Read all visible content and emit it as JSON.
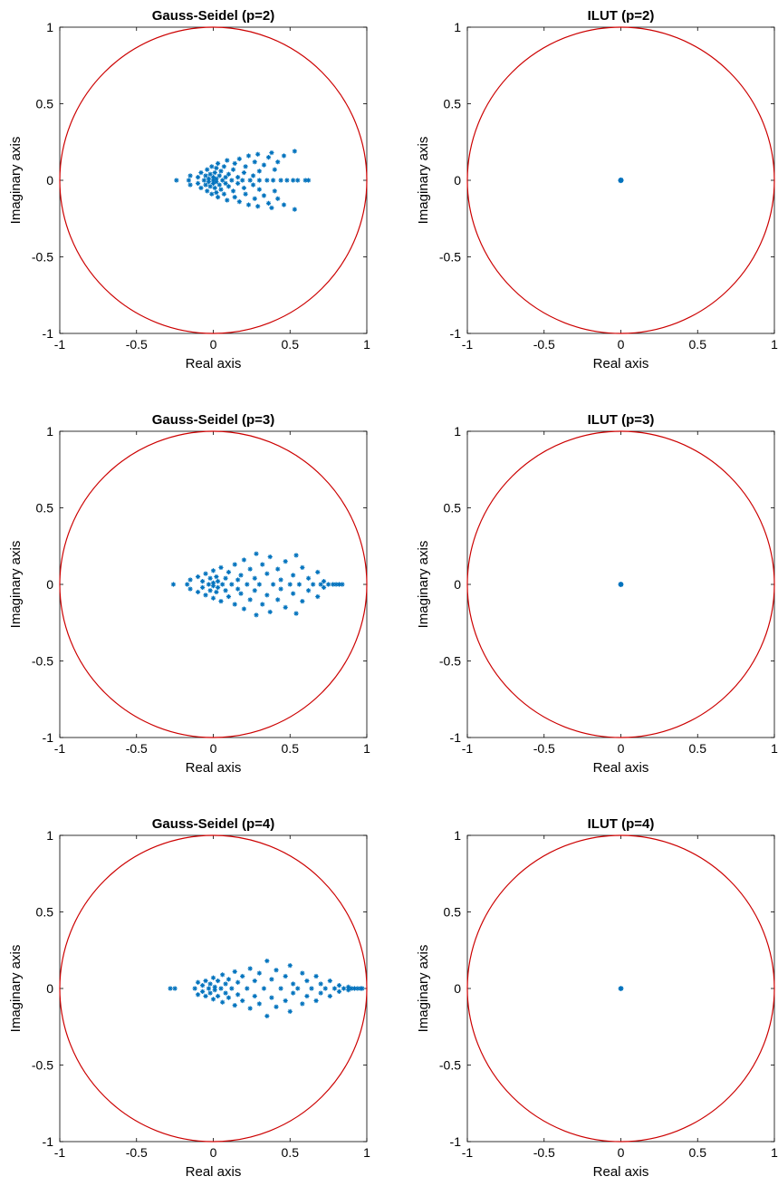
{
  "colors": {
    "unit_circle": "#cc0000",
    "eigenvalues": "#0072bd",
    "axes": "#000000"
  },
  "chart_data": [
    {
      "type": "scatter",
      "title": "Gauss-Seidel (p=2)",
      "xlabel": "Real axis",
      "ylabel": "Imaginary axis",
      "xlim": [
        -1,
        1
      ],
      "ylim": [
        -1,
        1
      ],
      "xticks": [
        "-1",
        "-0.5",
        "0",
        "0.5",
        "1"
      ],
      "yticks": [
        "-1",
        "-0.5",
        "0",
        "0.5",
        "1"
      ],
      "grid": false,
      "reference": "unit circle",
      "marker": "*",
      "points": [
        [
          -0.24,
          0
        ],
        [
          -0.16,
          0
        ],
        [
          -0.15,
          0.03
        ],
        [
          -0.15,
          -0.03
        ],
        [
          -0.1,
          0.02
        ],
        [
          -0.1,
          -0.02
        ],
        [
          -0.08,
          0.05
        ],
        [
          -0.08,
          -0.05
        ],
        [
          -0.06,
          0
        ],
        [
          -0.05,
          0.03
        ],
        [
          -0.05,
          -0.03
        ],
        [
          -0.04,
          0.07
        ],
        [
          -0.04,
          -0.07
        ],
        [
          -0.03,
          0.01
        ],
        [
          -0.03,
          -0.01
        ],
        [
          -0.02,
          0.04
        ],
        [
          -0.02,
          -0.04
        ],
        [
          -0.01,
          0.09
        ],
        [
          -0.01,
          -0.09
        ],
        [
          0,
          0
        ],
        [
          0,
          0.02
        ],
        [
          0,
          -0.02
        ],
        [
          0.01,
          0.05
        ],
        [
          0.01,
          -0.05
        ],
        [
          0.02,
          0.01
        ],
        [
          0.02,
          -0.01
        ],
        [
          0.02,
          0.08
        ],
        [
          0.02,
          -0.08
        ],
        [
          0.03,
          0.11
        ],
        [
          0.03,
          -0.11
        ],
        [
          0.04,
          0.03
        ],
        [
          0.04,
          -0.03
        ],
        [
          0.05,
          0.06
        ],
        [
          0.05,
          -0.06
        ],
        [
          0.06,
          0
        ],
        [
          0.07,
          0.09
        ],
        [
          0.07,
          -0.09
        ],
        [
          0.08,
          0.02
        ],
        [
          0.08,
          -0.02
        ],
        [
          0.09,
          0.13
        ],
        [
          0.09,
          -0.13
        ],
        [
          0.1,
          0.04
        ],
        [
          0.1,
          -0.04
        ],
        [
          0.12,
          0
        ],
        [
          0.13,
          0.07
        ],
        [
          0.13,
          -0.07
        ],
        [
          0.14,
          0.11
        ],
        [
          0.14,
          -0.11
        ],
        [
          0.16,
          0.02
        ],
        [
          0.16,
          -0.02
        ],
        [
          0.17,
          0.14
        ],
        [
          0.17,
          -0.14
        ],
        [
          0.19,
          0
        ],
        [
          0.2,
          0.05
        ],
        [
          0.2,
          -0.05
        ],
        [
          0.21,
          0.09
        ],
        [
          0.21,
          -0.09
        ],
        [
          0.23,
          0.16
        ],
        [
          0.23,
          -0.16
        ],
        [
          0.24,
          0
        ],
        [
          0.26,
          0.03
        ],
        [
          0.26,
          -0.03
        ],
        [
          0.27,
          0.12
        ],
        [
          0.27,
          -0.12
        ],
        [
          0.29,
          0.17
        ],
        [
          0.29,
          -0.17
        ],
        [
          0.3,
          0
        ],
        [
          0.3,
          0.06
        ],
        [
          0.3,
          -0.06
        ],
        [
          0.33,
          0.1
        ],
        [
          0.33,
          -0.1
        ],
        [
          0.35,
          0
        ],
        [
          0.36,
          0.15
        ],
        [
          0.36,
          -0.15
        ],
        [
          0.38,
          0.18
        ],
        [
          0.38,
          -0.18
        ],
        [
          0.39,
          0
        ],
        [
          0.4,
          0.07
        ],
        [
          0.4,
          -0.07
        ],
        [
          0.42,
          0.12
        ],
        [
          0.42,
          -0.12
        ],
        [
          0.44,
          0
        ],
        [
          0.46,
          0.16
        ],
        [
          0.46,
          -0.16
        ],
        [
          0.48,
          0
        ],
        [
          0.52,
          0
        ],
        [
          0.53,
          0.19
        ],
        [
          0.53,
          -0.19
        ],
        [
          0.55,
          0
        ],
        [
          0.6,
          0
        ],
        [
          0.62,
          0
        ]
      ]
    },
    {
      "type": "scatter",
      "title": "ILUT (p=2)",
      "xlabel": "Real axis",
      "ylabel": "Imaginary axis",
      "xlim": [
        -1,
        1
      ],
      "ylim": [
        -1,
        1
      ],
      "xticks": [
        "-1",
        "-0.5",
        "0",
        "0.5",
        "1"
      ],
      "yticks": [
        "-1",
        "-0.5",
        "0",
        "0.5",
        "1"
      ],
      "grid": false,
      "reference": "unit circle",
      "marker": "*",
      "points": [
        [
          0,
          0
        ],
        [
          0.002,
          0.002
        ],
        [
          -0.002,
          -0.002
        ],
        [
          0.003,
          -0.001
        ],
        [
          -0.003,
          0.001
        ],
        [
          0.001,
          0.003
        ],
        [
          -0.001,
          -0.003
        ]
      ]
    },
    {
      "type": "scatter",
      "title": "Gauss-Seidel (p=3)",
      "xlabel": "Real axis",
      "ylabel": "Imaginary axis",
      "xlim": [
        -1,
        1
      ],
      "ylim": [
        -1,
        1
      ],
      "xticks": [
        "-1",
        "-0.5",
        "0",
        "0.5",
        "1"
      ],
      "yticks": [
        "-1",
        "-0.5",
        "0",
        "0.5",
        "1"
      ],
      "grid": false,
      "reference": "unit circle",
      "marker": "*",
      "points": [
        [
          -0.26,
          0
        ],
        [
          -0.17,
          0
        ],
        [
          -0.15,
          0.03
        ],
        [
          -0.15,
          -0.03
        ],
        [
          -0.1,
          0.05
        ],
        [
          -0.1,
          -0.05
        ],
        [
          -0.07,
          0.02
        ],
        [
          -0.07,
          -0.02
        ],
        [
          -0.05,
          0.07
        ],
        [
          -0.05,
          -0.07
        ],
        [
          -0.03,
          0
        ],
        [
          -0.02,
          0.04
        ],
        [
          -0.02,
          -0.04
        ],
        [
          0,
          0.09
        ],
        [
          0,
          -0.09
        ],
        [
          0,
          0.01
        ],
        [
          0,
          -0.01
        ],
        [
          0.02,
          0.05
        ],
        [
          0.02,
          -0.05
        ],
        [
          0.03,
          0.02
        ],
        [
          0.03,
          -0.02
        ],
        [
          0.05,
          0.11
        ],
        [
          0.05,
          -0.11
        ],
        [
          0.06,
          0
        ],
        [
          0.08,
          0.04
        ],
        [
          0.08,
          -0.04
        ],
        [
          0.1,
          0.08
        ],
        [
          0.1,
          -0.08
        ],
        [
          0.12,
          0
        ],
        [
          0.14,
          0.13
        ],
        [
          0.14,
          -0.13
        ],
        [
          0.16,
          0.03
        ],
        [
          0.16,
          -0.03
        ],
        [
          0.18,
          0.06
        ],
        [
          0.18,
          -0.06
        ],
        [
          0.2,
          0.16
        ],
        [
          0.2,
          -0.16
        ],
        [
          0.22,
          0
        ],
        [
          0.24,
          0.1
        ],
        [
          0.24,
          -0.1
        ],
        [
          0.27,
          0.04
        ],
        [
          0.27,
          -0.04
        ],
        [
          0.28,
          0.2
        ],
        [
          0.28,
          -0.2
        ],
        [
          0.3,
          0
        ],
        [
          0.32,
          0.13
        ],
        [
          0.32,
          -0.13
        ],
        [
          0.35,
          0.07
        ],
        [
          0.35,
          -0.07
        ],
        [
          0.37,
          0.18
        ],
        [
          0.37,
          -0.18
        ],
        [
          0.39,
          0
        ],
        [
          0.42,
          0.1
        ],
        [
          0.42,
          -0.1
        ],
        [
          0.44,
          0.03
        ],
        [
          0.44,
          -0.03
        ],
        [
          0.47,
          0.15
        ],
        [
          0.47,
          -0.15
        ],
        [
          0.5,
          0
        ],
        [
          0.52,
          0.06
        ],
        [
          0.52,
          -0.06
        ],
        [
          0.54,
          0.19
        ],
        [
          0.54,
          -0.19
        ],
        [
          0.56,
          0
        ],
        [
          0.58,
          0.11
        ],
        [
          0.58,
          -0.11
        ],
        [
          0.62,
          0.04
        ],
        [
          0.62,
          -0.04
        ],
        [
          0.65,
          0
        ],
        [
          0.68,
          0.08
        ],
        [
          0.68,
          -0.08
        ],
        [
          0.7,
          0
        ],
        [
          0.72,
          0.02
        ],
        [
          0.72,
          -0.02
        ],
        [
          0.75,
          0
        ],
        [
          0.78,
          0
        ],
        [
          0.8,
          0
        ],
        [
          0.82,
          0
        ],
        [
          0.84,
          0
        ]
      ]
    },
    {
      "type": "scatter",
      "title": "ILUT (p=3)",
      "xlabel": "Real axis",
      "ylabel": "Imaginary axis",
      "xlim": [
        -1,
        1
      ],
      "ylim": [
        -1,
        1
      ],
      "xticks": [
        "-1",
        "-0.5",
        "0",
        "0.5",
        "1"
      ],
      "yticks": [
        "-1",
        "-0.5",
        "0",
        "0.5",
        "1"
      ],
      "grid": false,
      "reference": "unit circle",
      "marker": "*",
      "points": [
        [
          0,
          0
        ],
        [
          0.002,
          0.001
        ],
        [
          -0.002,
          -0.001
        ],
        [
          0.001,
          -0.002
        ],
        [
          -0.001,
          0.002
        ]
      ]
    },
    {
      "type": "scatter",
      "title": "Gauss-Seidel (p=4)",
      "xlabel": "Real axis",
      "ylabel": "Imaginary axis",
      "xlim": [
        -1,
        1
      ],
      "ylim": [
        -1,
        1
      ],
      "xticks": [
        "-1",
        "-0.5",
        "0",
        "0.5",
        "1"
      ],
      "yticks": [
        "-1",
        "-0.5",
        "0",
        "0.5",
        "1"
      ],
      "grid": false,
      "reference": "unit circle",
      "marker": "*",
      "points": [
        [
          -0.28,
          0
        ],
        [
          -0.25,
          0
        ],
        [
          -0.12,
          0
        ],
        [
          -0.1,
          0.04
        ],
        [
          -0.1,
          -0.04
        ],
        [
          -0.07,
          0.02
        ],
        [
          -0.07,
          -0.02
        ],
        [
          -0.05,
          0.05
        ],
        [
          -0.05,
          -0.05
        ],
        [
          -0.03,
          0
        ],
        [
          -0.02,
          0.03
        ],
        [
          -0.02,
          -0.03
        ],
        [
          0,
          0.07
        ],
        [
          0,
          -0.07
        ],
        [
          0.01,
          0.01
        ],
        [
          0.01,
          -0.01
        ],
        [
          0.03,
          0.05
        ],
        [
          0.03,
          -0.05
        ],
        [
          0.05,
          0
        ],
        [
          0.06,
          0.09
        ],
        [
          0.06,
          -0.09
        ],
        [
          0.08,
          0.03
        ],
        [
          0.08,
          -0.03
        ],
        [
          0.1,
          0.06
        ],
        [
          0.1,
          -0.06
        ],
        [
          0.12,
          0
        ],
        [
          0.14,
          0.11
        ],
        [
          0.14,
          -0.11
        ],
        [
          0.16,
          0.04
        ],
        [
          0.16,
          -0.04
        ],
        [
          0.19,
          0.08
        ],
        [
          0.19,
          -0.08
        ],
        [
          0.22,
          0
        ],
        [
          0.24,
          0.13
        ],
        [
          0.24,
          -0.13
        ],
        [
          0.27,
          0.05
        ],
        [
          0.27,
          -0.05
        ],
        [
          0.3,
          0.1
        ],
        [
          0.3,
          -0.1
        ],
        [
          0.33,
          0
        ],
        [
          0.35,
          0.18
        ],
        [
          0.35,
          -0.18
        ],
        [
          0.38,
          0.06
        ],
        [
          0.38,
          -0.06
        ],
        [
          0.41,
          0.12
        ],
        [
          0.41,
          -0.12
        ],
        [
          0.44,
          0
        ],
        [
          0.47,
          0.08
        ],
        [
          0.47,
          -0.08
        ],
        [
          0.5,
          0.15
        ],
        [
          0.5,
          -0.15
        ],
        [
          0.52,
          0.03
        ],
        [
          0.52,
          -0.03
        ],
        [
          0.55,
          0
        ],
        [
          0.58,
          0.1
        ],
        [
          0.58,
          -0.1
        ],
        [
          0.61,
          0.05
        ],
        [
          0.61,
          -0.05
        ],
        [
          0.64,
          0
        ],
        [
          0.67,
          0.08
        ],
        [
          0.67,
          -0.08
        ],
        [
          0.7,
          0.03
        ],
        [
          0.7,
          -0.03
        ],
        [
          0.73,
          0
        ],
        [
          0.76,
          0.05
        ],
        [
          0.76,
          -0.05
        ],
        [
          0.79,
          0
        ],
        [
          0.82,
          0.02
        ],
        [
          0.82,
          -0.02
        ],
        [
          0.85,
          0
        ],
        [
          0.88,
          0.01
        ],
        [
          0.88,
          -0.01
        ],
        [
          0.9,
          0
        ],
        [
          0.92,
          0
        ],
        [
          0.94,
          0
        ],
        [
          0.96,
          0
        ],
        [
          0.97,
          0
        ]
      ]
    },
    {
      "type": "scatter",
      "title": "ILUT (p=4)",
      "xlabel": "Real axis",
      "ylabel": "Imaginary axis",
      "xlim": [
        -1,
        1
      ],
      "ylim": [
        -1,
        1
      ],
      "xticks": [
        "-1",
        "-0.5",
        "0",
        "0.5",
        "1"
      ],
      "yticks": [
        "-1",
        "-0.5",
        "0",
        "0.5",
        "1"
      ],
      "grid": false,
      "reference": "unit circle",
      "marker": "*",
      "points": [
        [
          0,
          0
        ],
        [
          0.002,
          0.001
        ],
        [
          -0.002,
          -0.001
        ],
        [
          0.001,
          -0.001
        ]
      ]
    }
  ]
}
